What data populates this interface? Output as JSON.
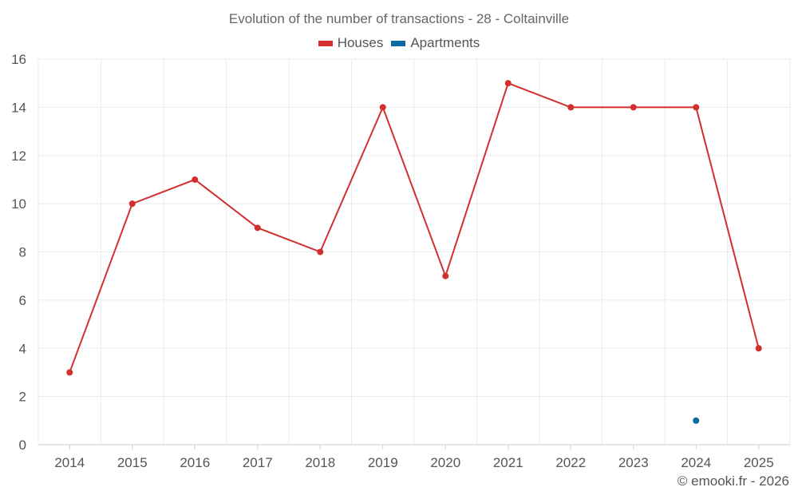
{
  "chart_data": {
    "type": "line",
    "title": "Evolution of the number of transactions - 28 - Coltainville",
    "xlabel": "",
    "ylabel": "",
    "categories": [
      "2014",
      "2015",
      "2016",
      "2017",
      "2018",
      "2019",
      "2020",
      "2021",
      "2022",
      "2023",
      "2024",
      "2025"
    ],
    "ylim": [
      0,
      16
    ],
    "yticks": [
      0,
      2,
      4,
      6,
      8,
      10,
      12,
      14,
      16
    ],
    "grid": true,
    "legend_position": "top-center",
    "series": [
      {
        "name": "Houses",
        "color": "#d32f2f",
        "values": [
          3,
          10,
          11,
          9,
          8,
          14,
          7,
          15,
          14,
          14,
          14,
          4
        ]
      },
      {
        "name": "Apartments",
        "color": "#0a6aa1",
        "values": [
          null,
          null,
          null,
          null,
          null,
          null,
          null,
          null,
          null,
          null,
          1,
          null
        ]
      }
    ]
  },
  "credit": "© emooki.fr - 2026"
}
